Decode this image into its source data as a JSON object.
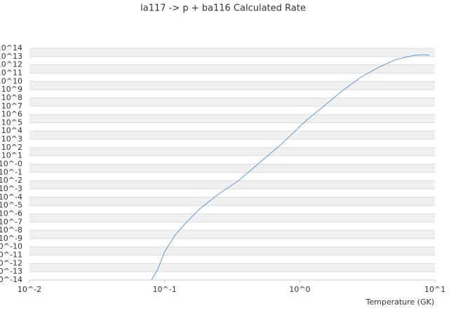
{
  "chart_data": {
    "type": "line",
    "title": "la117 -> p + ba116 Calculated Rate",
    "x_label": "Temperature (GK)",
    "x": [
      0.08,
      0.089,
      0.1,
      0.12,
      0.144,
      0.182,
      0.246,
      0.352,
      0.5,
      0.72,
      1.12,
      1.48,
      2.11,
      2.85,
      3.84,
      5.17,
      6.98,
      8.36,
      9.08
    ],
    "series": [
      {
        "color": "#5b9bd5",
        "values": [
          1e-14,
          2e-13,
          2.5e-11,
          3e-09,
          8.5e-08,
          4e-06,
          0.0002,
          0.01,
          1.35,
          210,
          200000.0,
          8000000.0,
          1000000000.0,
          34000000000.0,
          520000000000.0,
          4500000000000.0,
          14000000000000.0,
          17000000000000.0,
          14000000000000.0
        ]
      }
    ],
    "xscale": "log",
    "yscale": "log",
    "xlim": [
      0.01,
      10
    ],
    "xticks": [
      {
        "value": 0.01,
        "label": "10^-2"
      },
      {
        "value": 0.1,
        "label": "10^-1"
      },
      {
        "value": 1,
        "label": "10^0"
      },
      {
        "value": 10,
        "label": "10^1"
      }
    ],
    "ylim": [
      1e-14,
      100000000000000.0
    ],
    "yticks": [
      {
        "value": 1e-14,
        "label": "10^-14"
      },
      {
        "value": 1e-13,
        "label": "10^-13"
      },
      {
        "value": 1e-12,
        "label": "10^-12"
      },
      {
        "value": 1e-11,
        "label": "10^-11"
      },
      {
        "value": 1e-10,
        "label": "10^-10"
      },
      {
        "value": 1e-09,
        "label": "10^-9"
      },
      {
        "value": 1e-08,
        "label": "10^-8"
      },
      {
        "value": 1e-07,
        "label": "10^-7"
      },
      {
        "value": 1e-06,
        "label": "10^-6"
      },
      {
        "value": 1e-05,
        "label": "10^-5"
      },
      {
        "value": 0.0001,
        "label": "10^-4"
      },
      {
        "value": 0.001,
        "label": "10^-3"
      },
      {
        "value": 0.01,
        "label": "10^-2"
      },
      {
        "value": 0.1,
        "label": "10^-1"
      },
      {
        "value": 1,
        "label": "10^-0"
      },
      {
        "value": 10.0,
        "label": "10^1"
      },
      {
        "value": 100.0,
        "label": "10^2"
      },
      {
        "value": 1000.0,
        "label": "10^3"
      },
      {
        "value": 10000.0,
        "label": "10^4"
      },
      {
        "value": 100000.0,
        "label": "10^5"
      },
      {
        "value": 1000000.0,
        "label": "10^6"
      },
      {
        "value": 10000000.0,
        "label": "10^7"
      },
      {
        "value": 100000000.0,
        "label": "10^8"
      },
      {
        "value": 1000000000.0,
        "label": "10^9"
      },
      {
        "value": 10000000000.0,
        "label": "10^10"
      },
      {
        "value": 100000000000.0,
        "label": "10^11"
      },
      {
        "value": 1000000000000.0,
        "label": "10^12"
      },
      {
        "value": 10000000000000.0,
        "label": "10^13"
      },
      {
        "value": 100000000000000.0,
        "label": "10^14"
      }
    ],
    "grid": true
  }
}
